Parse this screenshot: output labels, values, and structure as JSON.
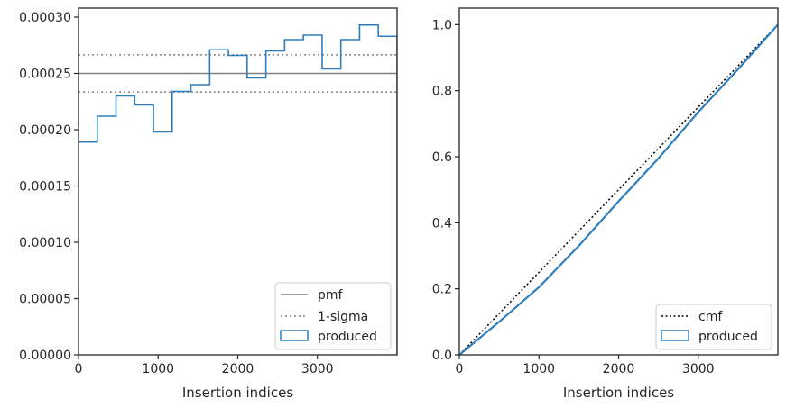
{
  "colors": {
    "produced": "#2e7ebc",
    "pmf": "#808080",
    "sigma": "#808080",
    "cmf": "#000000",
    "frame": "#262626"
  },
  "chart_data": [
    {
      "type": "histogram",
      "xlabel": "Insertion indices",
      "ylabel": "",
      "xlim": [
        0,
        4000
      ],
      "ylim": [
        0,
        0.000308
      ],
      "xticks": [
        0,
        1000,
        2000,
        3000
      ],
      "xtick_labels": [
        "0",
        "1000",
        "2000",
        "3000"
      ],
      "yticks": [
        0,
        5e-05,
        0.0001,
        0.00015,
        0.0002,
        0.00025,
        0.0003
      ],
      "ytick_labels": [
        "0.00000",
        "0.00005",
        "0.00010",
        "0.00015",
        "0.00020",
        "0.00025",
        "0.00030"
      ],
      "legend_position": "lower-right",
      "pmf": 0.00025,
      "sigma": [
        0.0002335,
        0.0002665
      ],
      "bin_edges": [
        0,
        235,
        470,
        706,
        941,
        1176,
        1411,
        1647,
        1882,
        2117,
        2353,
        2588,
        2823,
        3059,
        3294,
        3529,
        3764,
        4000
      ],
      "bin_values": [
        0.000189,
        0.000212,
        0.00023,
        0.000222,
        0.000198,
        0.000234,
        0.00024,
        0.000271,
        0.000266,
        0.000246,
        0.00027,
        0.00028,
        0.000284,
        0.000254,
        0.00028,
        0.000293,
        0.000283
      ],
      "legend": [
        {
          "key": "pmf",
          "label": "pmf"
        },
        {
          "key": "sigma",
          "label": "1-sigma"
        },
        {
          "key": "produced",
          "label": "produced"
        }
      ]
    },
    {
      "type": "line",
      "xlabel": "Insertion indices",
      "ylabel": "",
      "xlim": [
        0,
        4000
      ],
      "ylim": [
        0,
        1.05
      ],
      "xticks": [
        0,
        1000,
        2000,
        3000
      ],
      "xtick_labels": [
        "0",
        "1000",
        "2000",
        "3000"
      ],
      "yticks": [
        0,
        0.2,
        0.4,
        0.6,
        0.8,
        1.0
      ],
      "ytick_labels": [
        "0.0",
        "0.2",
        "0.4",
        "0.6",
        "0.8",
        "1.0"
      ],
      "legend_position": "lower-right",
      "cmf": {
        "x": [
          0,
          4000
        ],
        "y": [
          0,
          1
        ]
      },
      "produced": {
        "x": [
          0,
          500,
          1000,
          1500,
          2000,
          2500,
          3000,
          3500,
          4000
        ],
        "y": [
          0,
          0.1,
          0.205,
          0.33,
          0.465,
          0.595,
          0.735,
          0.865,
          1.0
        ]
      },
      "legend": [
        {
          "key": "cmf",
          "label": "cmf"
        },
        {
          "key": "produced",
          "label": "produced"
        }
      ]
    }
  ]
}
